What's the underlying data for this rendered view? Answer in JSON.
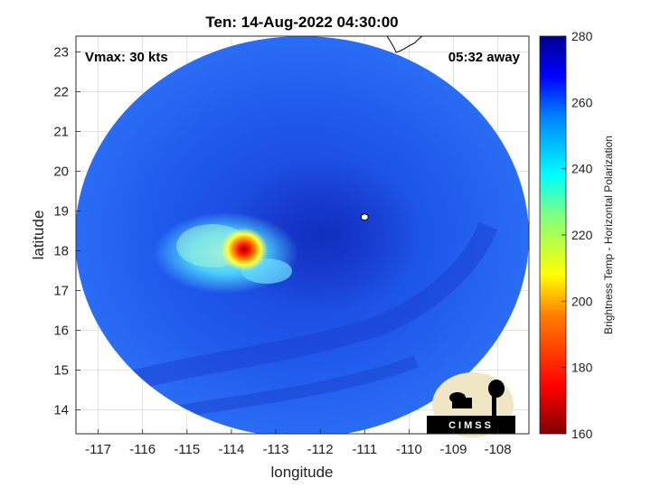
{
  "chart_data": {
    "type": "heatmap",
    "title": "Ten: 14-Aug-2022 04:30:00",
    "xlabel": "longitude",
    "ylabel": "latitude",
    "xlim": [
      -117.5,
      -107.3
    ],
    "ylim": [
      13.4,
      23.4
    ],
    "xticks": [
      -117,
      -116,
      -115,
      -114,
      -113,
      -112,
      -111,
      -110,
      -109,
      -108
    ],
    "yticks": [
      14,
      15,
      16,
      17,
      18,
      19,
      20,
      21,
      22,
      23
    ],
    "grid": true,
    "annotations": {
      "vmax": "Vmax: 30 kts",
      "away": "05:32 away"
    },
    "storm_center": {
      "lon": -111.0,
      "lat": 18.85
    },
    "convection_peak": {
      "lon": -113.6,
      "lat": 17.9,
      "min_temp": 185
    },
    "colorbar": {
      "label": "Brightness Temp - Horizontal Polarization",
      "min": 160,
      "max": 280,
      "ticks": [
        160,
        180,
        200,
        220,
        240,
        260,
        280
      ],
      "colormap": "jet"
    },
    "logo": "CIMSS"
  },
  "colors": {
    "background_field": "#1f55ea",
    "deep_field": "#1535c8",
    "coastline": "#000000",
    "grid": "#d9d9d9"
  }
}
